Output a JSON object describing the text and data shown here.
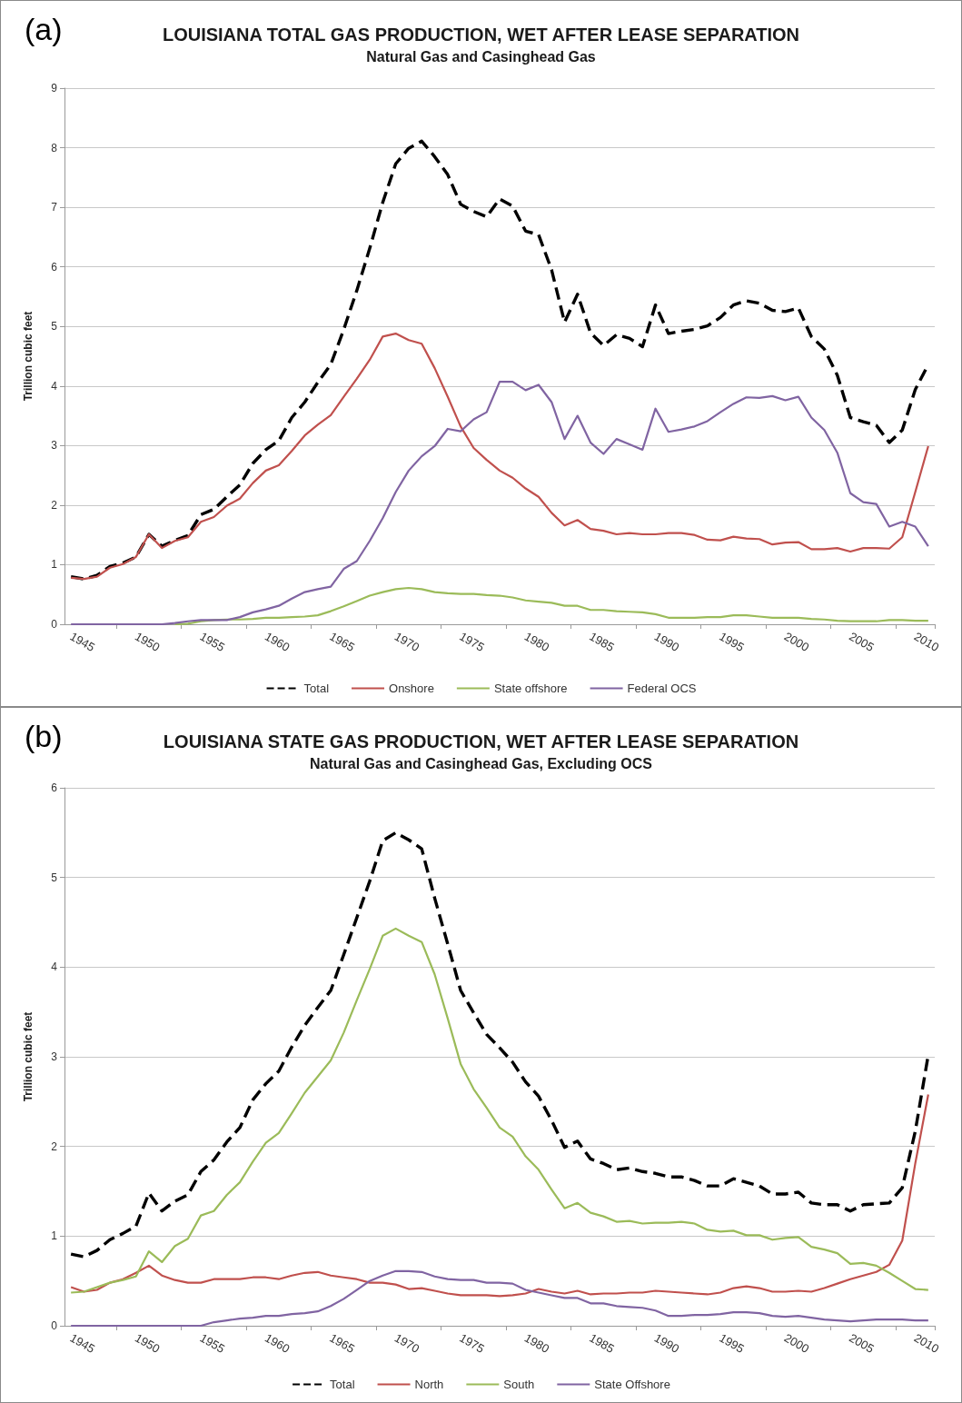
{
  "chart_data": [
    {
      "type": "line",
      "title": "LOUISIANA TOTAL GAS PRODUCTION, WET AFTER LEASE SEPARATION",
      "subtitle": "Natural Gas and Casinghead Gas",
      "ylabel": "Trillion cubic feet",
      "annotations": [
        "(a)"
      ],
      "categories": [
        "1945",
        null,
        null,
        null,
        null,
        "1950",
        null,
        null,
        null,
        null,
        "1955",
        null,
        null,
        null,
        null,
        "1960",
        null,
        null,
        null,
        null,
        "1965",
        null,
        null,
        null,
        null,
        "1970",
        null,
        null,
        null,
        null,
        "1975",
        null,
        null,
        null,
        null,
        "1980",
        null,
        null,
        null,
        null,
        "1985",
        null,
        null,
        null,
        null,
        "1990",
        null,
        null,
        null,
        null,
        "1995",
        null,
        null,
        null,
        null,
        "2000",
        null,
        null,
        null,
        null,
        "2005",
        null,
        null,
        null,
        null,
        "2010",
        null
      ],
      "ylim": [
        0,
        9
      ],
      "yticks": [
        0,
        1,
        2,
        3,
        4,
        5,
        6,
        7,
        8,
        9
      ],
      "grid": "y",
      "legend": "bottom",
      "marker": "none",
      "series": [
        {
          "name": "Total",
          "color": "#000000",
          "line_style": "dashed",
          "values": [
            0.8,
            0.76,
            0.82,
            0.97,
            1.03,
            1.13,
            1.51,
            1.31,
            1.41,
            1.49,
            1.84,
            1.93,
            2.14,
            2.34,
            2.7,
            2.93,
            3.08,
            3.47,
            3.73,
            4.06,
            4.36,
            4.95,
            5.6,
            6.31,
            7.08,
            7.73,
            7.99,
            8.11,
            7.85,
            7.55,
            7.05,
            6.93,
            6.84,
            7.14,
            7.02,
            6.6,
            6.54,
            5.95,
            5.07,
            5.54,
            4.89,
            4.68,
            4.86,
            4.8,
            4.66,
            5.36,
            4.88,
            4.92,
            4.95,
            5.01,
            5.15,
            5.36,
            5.43,
            5.39,
            5.27,
            5.25,
            5.31,
            4.83,
            4.62,
            4.18,
            3.47,
            3.4,
            3.34,
            3.05,
            3.26,
            3.94,
            4.36
          ]
        },
        {
          "name": "Onshore",
          "color": "#c0504d",
          "line_style": "solid",
          "values": [
            0.78,
            0.76,
            0.8,
            0.95,
            1.01,
            1.13,
            1.51,
            1.28,
            1.4,
            1.46,
            1.72,
            1.8,
            1.99,
            2.11,
            2.37,
            2.58,
            2.67,
            2.91,
            3.17,
            3.35,
            3.51,
            3.82,
            4.12,
            4.44,
            4.83,
            4.88,
            4.77,
            4.71,
            4.3,
            3.82,
            3.32,
            2.96,
            2.76,
            2.58,
            2.46,
            2.28,
            2.14,
            1.87,
            1.66,
            1.75,
            1.6,
            1.57,
            1.51,
            1.53,
            1.51,
            1.51,
            1.53,
            1.53,
            1.5,
            1.42,
            1.41,
            1.47,
            1.44,
            1.43,
            1.34,
            1.37,
            1.38,
            1.26,
            1.26,
            1.28,
            1.22,
            1.28,
            1.28,
            1.27,
            1.46,
            2.22,
            2.99
          ]
        },
        {
          "name": "State offshore",
          "color": "#9bbb59",
          "line_style": "solid",
          "values": [
            null,
            null,
            null,
            null,
            null,
            null,
            null,
            null,
            0,
            0.01,
            0.05,
            0.07,
            0.08,
            0.08,
            0.09,
            0.11,
            0.11,
            0.12,
            0.13,
            0.15,
            0.22,
            0.3,
            0.39,
            0.48,
            0.54,
            0.59,
            0.61,
            0.59,
            0.54,
            0.52,
            0.51,
            0.51,
            0.49,
            0.48,
            0.45,
            0.4,
            0.38,
            0.36,
            0.31,
            0.31,
            0.24,
            0.24,
            0.22,
            0.21,
            0.2,
            0.17,
            0.11,
            0.11,
            0.11,
            0.12,
            0.12,
            0.15,
            0.15,
            0.13,
            0.11,
            0.11,
            0.11,
            0.09,
            0.08,
            0.06,
            0.05,
            0.05,
            0.05,
            0.07,
            0.07,
            0.06,
            0.06
          ]
        },
        {
          "name": "Federal OCS",
          "color": "#8064a2",
          "line_style": "solid",
          "values": [
            0,
            0,
            0,
            0,
            0,
            0,
            0,
            0,
            0.02,
            0.05,
            0.07,
            0.07,
            0.07,
            0.12,
            0.2,
            0.25,
            0.31,
            0.43,
            0.54,
            0.59,
            0.63,
            0.93,
            1.06,
            1.4,
            1.78,
            2.22,
            2.58,
            2.82,
            2.99,
            3.28,
            3.24,
            3.44,
            3.56,
            4.07,
            4.07,
            3.93,
            4.02,
            3.73,
            3.11,
            3.5,
            3.05,
            2.86,
            3.11,
            3.02,
            2.93,
            3.62,
            3.23,
            3.27,
            3.32,
            3.41,
            3.56,
            3.7,
            3.81,
            3.8,
            3.83,
            3.76,
            3.82,
            3.47,
            3.26,
            2.88,
            2.2,
            2.05,
            2.02,
            1.64,
            1.72,
            1.64,
            1.31
          ]
        }
      ]
    },
    {
      "type": "line",
      "title": "LOUISIANA STATE GAS PRODUCTION, WET AFTER LEASE SEPARATION",
      "subtitle": "Natural Gas and Casinghead Gas, Excluding OCS",
      "ylabel": "Trillion cubic feet",
      "annotations": [
        "(b)"
      ],
      "categories": [
        "1945",
        null,
        null,
        null,
        null,
        "1950",
        null,
        null,
        null,
        null,
        "1955",
        null,
        null,
        null,
        null,
        "1960",
        null,
        null,
        null,
        null,
        "1965",
        null,
        null,
        null,
        null,
        "1970",
        null,
        null,
        null,
        null,
        "1975",
        null,
        null,
        null,
        null,
        "1980",
        null,
        null,
        null,
        null,
        "1985",
        null,
        null,
        null,
        null,
        "1990",
        null,
        null,
        null,
        null,
        "1995",
        null,
        null,
        null,
        null,
        "2000",
        null,
        null,
        null,
        null,
        "2005",
        null,
        null,
        null,
        null,
        "2010",
        null
      ],
      "ylim": [
        0,
        6
      ],
      "yticks": [
        0,
        1,
        2,
        3,
        4,
        5,
        6
      ],
      "grid": "y",
      "legend": "bottom",
      "marker": "none",
      "series": [
        {
          "name": "Total",
          "color": "#000000",
          "line_style": "dashed",
          "values": [
            0.8,
            0.77,
            0.84,
            0.96,
            1.03,
            1.11,
            1.48,
            1.28,
            1.39,
            1.46,
            1.72,
            1.85,
            2.05,
            2.21,
            2.52,
            2.7,
            2.84,
            3.11,
            3.35,
            3.55,
            3.74,
            4.14,
            4.55,
            4.96,
            5.41,
            5.5,
            5.42,
            5.32,
            4.77,
            4.26,
            3.74,
            3.49,
            3.25,
            3.1,
            2.94,
            2.72,
            2.56,
            2.29,
            1.99,
            2.06,
            1.86,
            1.81,
            1.74,
            1.76,
            1.72,
            1.7,
            1.66,
            1.66,
            1.62,
            1.56,
            1.56,
            1.64,
            1.6,
            1.56,
            1.47,
            1.47,
            1.49,
            1.37,
            1.35,
            1.35,
            1.28,
            1.35,
            1.36,
            1.37,
            1.54,
            2.17,
            3.02
          ]
        },
        {
          "name": "North",
          "color": "#c0504d",
          "line_style": "solid",
          "values": [
            0.43,
            0.38,
            0.4,
            0.48,
            0.52,
            0.59,
            0.67,
            0.56,
            0.51,
            0.48,
            0.48,
            0.52,
            0.52,
            0.52,
            0.54,
            0.54,
            0.52,
            0.56,
            0.59,
            0.6,
            0.56,
            0.54,
            0.52,
            0.48,
            0.48,
            0.46,
            0.41,
            0.42,
            0.39,
            0.36,
            0.34,
            0.34,
            0.34,
            0.33,
            0.34,
            0.36,
            0.41,
            0.38,
            0.36,
            0.39,
            0.35,
            0.36,
            0.36,
            0.37,
            0.37,
            0.39,
            0.38,
            0.37,
            0.36,
            0.35,
            0.37,
            0.42,
            0.44,
            0.42,
            0.38,
            0.38,
            0.39,
            0.38,
            0.42,
            0.47,
            0.52,
            0.56,
            0.6,
            0.68,
            0.95,
            1.81,
            2.58
          ]
        },
        {
          "name": "South",
          "color": "#9bbb59",
          "line_style": "solid",
          "values": [
            0.37,
            0.38,
            0.43,
            0.48,
            0.51,
            0.55,
            0.83,
            0.71,
            0.89,
            0.97,
            1.23,
            1.28,
            1.46,
            1.6,
            1.83,
            2.04,
            2.15,
            2.37,
            2.6,
            2.78,
            2.96,
            3.27,
            3.63,
            3.98,
            4.35,
            4.43,
            4.35,
            4.28,
            3.92,
            3.43,
            2.92,
            2.64,
            2.43,
            2.21,
            2.11,
            1.89,
            1.74,
            1.52,
            1.31,
            1.37,
            1.26,
            1.22,
            1.16,
            1.17,
            1.14,
            1.15,
            1.15,
            1.16,
            1.14,
            1.07,
            1.05,
            1.06,
            1.01,
            1.01,
            0.96,
            0.98,
            0.99,
            0.88,
            0.85,
            0.81,
            0.69,
            0.7,
            0.67,
            0.59,
            0.5,
            0.41,
            0.4
          ]
        },
        {
          "name": "State Offshore",
          "color": "#8064a2",
          "line_style": "solid",
          "values": [
            0,
            0,
            0,
            0,
            0,
            0,
            0,
            0,
            0,
            0,
            0,
            0.04,
            0.06,
            0.08,
            0.09,
            0.11,
            0.11,
            0.13,
            0.14,
            0.16,
            0.22,
            0.3,
            0.4,
            0.5,
            0.56,
            0.61,
            0.61,
            0.6,
            0.55,
            0.52,
            0.51,
            0.51,
            0.48,
            0.48,
            0.47,
            0.4,
            0.37,
            0.34,
            0.31,
            0.31,
            0.25,
            0.25,
            0.22,
            0.21,
            0.2,
            0.17,
            0.11,
            0.11,
            0.12,
            0.12,
            0.13,
            0.15,
            0.15,
            0.14,
            0.11,
            0.1,
            0.11,
            0.09,
            0.07,
            0.06,
            0.05,
            0.06,
            0.07,
            0.07,
            0.07,
            0.06,
            0.06
          ]
        }
      ]
    }
  ]
}
